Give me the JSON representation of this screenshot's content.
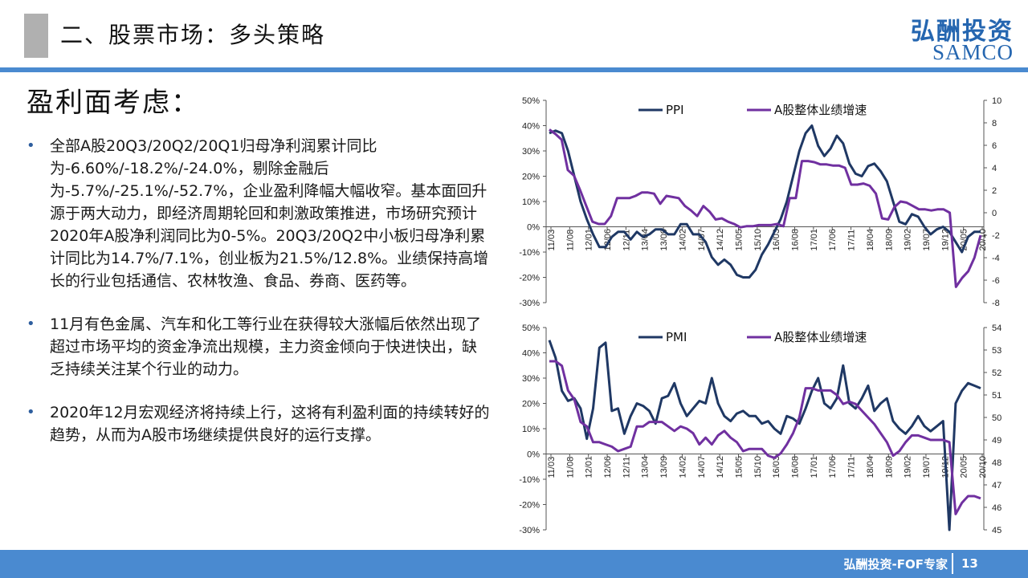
{
  "header": {
    "title": "二、股票市场：多头策略"
  },
  "brand": {
    "cn": "弘酬投资",
    "en": "SAMCO"
  },
  "section_title": "盈利面考虑：",
  "bullets": [
    "全部A股20Q3/20Q2/20Q1归母净利润累计同比为-6.60%/-18.2%/-24.0%，剔除金融后为-5.7%/-25.1%/-52.7%，企业盈利降幅大幅收窄。基本面回升源于两大动力，即经济周期轮回和刺激政策推进，市场研究预计2020年A股净利润同比为0-5%。20Q3/20Q2中小板归母净利累计同比为14.7%/7.1%，创业板为21.5%/12.8%。业绩保持高增长的行业包括通信、农林牧渔、食品、券商、医药等。",
    "11月有色金属、汽车和化工等行业在获得较大涨幅后依然出现了超过市场平均的资金净流出规模，主力资金倾向于快进快出，缺乏持续关注某个行业的动力。",
    "2020年12月宏观经济将持续上行，这将有利盈利面的持续转好的趋势，从而为A股市场继续提供良好的运行支撑。"
  ],
  "footer": {
    "text": "弘酬投资-FOF专家",
    "page": "13"
  },
  "colors": {
    "brand": "#2566b0",
    "bar": "#4a8ad0",
    "navy": "#1f3864",
    "purple": "#7030a0"
  },
  "chart_data": [
    {
      "type": "line",
      "x_ticks": [
        "11/03",
        "11/08",
        "12/01",
        "12/06",
        "12/11",
        "13/04",
        "13/09",
        "14/02",
        "14/07",
        "14/12",
        "15/05",
        "15/10",
        "16/03",
        "16/08",
        "17/01",
        "17/06",
        "17/11",
        "18/04",
        "18/09",
        "19/02",
        "19/07",
        "19/12",
        "20/05",
        "20/10"
      ],
      "left_axis": {
        "ticks": [
          "50%",
          "40%",
          "30%",
          "20%",
          "10%",
          "0%",
          "-10%",
          "-20%",
          "-30%"
        ],
        "ylim": [
          -30,
          50
        ]
      },
      "right_axis": {
        "ticks": [
          "10",
          "8",
          "6",
          "4",
          "2",
          "0",
          "-2",
          "-4",
          "-6",
          "-8"
        ],
        "ylim": [
          -8,
          10
        ]
      },
      "series": [
        {
          "name": "PPI",
          "axis": "left",
          "color": "#1f3864",
          "values": [
            37,
            38,
            37,
            30,
            20,
            10,
            3,
            -3,
            -8,
            -8,
            -4,
            -2,
            -2,
            -5,
            -2,
            -4,
            -3,
            -1,
            -1,
            -3,
            -3,
            1,
            1,
            -3,
            -3,
            -6,
            -12,
            -15,
            -13,
            -15,
            -19,
            -20,
            -20,
            -17,
            -11,
            -7,
            -2,
            3,
            10,
            20,
            30,
            37,
            40,
            32,
            28,
            31,
            36,
            33,
            25,
            21,
            20,
            24,
            25,
            22,
            18,
            10,
            2,
            1,
            5,
            4,
            0,
            -3,
            -1,
            0,
            -2,
            -6,
            -10,
            -4,
            -2,
            -2
          ]
        },
        {
          "name": "A股整体业绩增速",
          "axis": "right",
          "color": "#7030a0",
          "values": [
            7.4,
            7.0,
            6.5,
            3.8,
            3.3,
            2.0,
            0.6,
            -0.8,
            -1.0,
            -1.0,
            -0.3,
            1.3,
            1.3,
            1.3,
            1.5,
            1.8,
            1.8,
            1.7,
            0.8,
            1.5,
            1.4,
            1.3,
            0.6,
            0.2,
            -0.3,
            0.6,
            0.1,
            -0.6,
            -0.5,
            -0.8,
            -1.0,
            -1.3,
            -1.2,
            -1.2,
            -1.1,
            -1.1,
            -1.1,
            -1.0,
            -1.2,
            1.3,
            1.3,
            4.6,
            4.6,
            4.5,
            4.3,
            4.3,
            4.2,
            4.2,
            4.0,
            2.5,
            2.5,
            2.6,
            2.4,
            1.7,
            -0.5,
            -0.6,
            0.5,
            1.0,
            0.9,
            0.6,
            0.3,
            0.3,
            0.2,
            0.3,
            0.3,
            0.0,
            -6.6,
            -5.8,
            -5.2,
            -4.0,
            -2.0
          ]
        }
      ]
    },
    {
      "type": "line",
      "x_ticks": [
        "11/03",
        "11/08",
        "12/01",
        "12/06",
        "12/11",
        "13/04",
        "13/09",
        "14/02",
        "14/07",
        "14/12",
        "15/05",
        "15/10",
        "16/03",
        "16/08",
        "17/01",
        "17/06",
        "17/11",
        "18/04",
        "18/09",
        "19/02",
        "19/07",
        "19/12",
        "20/05",
        "20/10"
      ],
      "left_axis": {
        "ticks": [
          "50%",
          "40%",
          "30%",
          "20%",
          "10%",
          "0%",
          "-10%",
          "-20%",
          "-30%"
        ],
        "ylim": [
          -30,
          50
        ]
      },
      "right_axis": {
        "ticks": [
          "54",
          "53",
          "52",
          "51",
          "50",
          "49",
          "48",
          "47",
          "46",
          "45"
        ],
        "ylim": [
          45,
          54
        ]
      },
      "series": [
        {
          "name": "PMI",
          "axis": "left",
          "color": "#1f3864",
          "values": [
            45,
            38,
            25,
            21,
            22,
            18,
            6,
            18,
            42,
            44,
            17,
            18,
            8,
            15,
            20,
            19,
            17,
            12,
            22,
            23,
            28,
            20,
            15,
            18,
            21,
            20,
            30,
            20,
            15,
            13,
            16,
            17,
            15,
            15,
            12,
            13,
            10,
            8,
            15,
            14,
            12,
            18,
            25,
            30,
            20,
            18,
            22,
            35,
            20,
            18,
            22,
            27,
            17,
            20,
            22,
            13,
            10,
            8,
            11,
            15,
            11,
            9,
            11,
            13,
            -30,
            20,
            25,
            28,
            27,
            26
          ]
        },
        {
          "name": "A股整体业绩增速",
          "axis": "right",
          "color": "#7030a0",
          "values": [
            52.5,
            52.5,
            52.3,
            51.2,
            50.8,
            49.8,
            49.6,
            48.9,
            48.9,
            48.8,
            48.7,
            48.5,
            48.6,
            48.7,
            49.6,
            49.6,
            49.8,
            49.8,
            49.8,
            49.6,
            49.4,
            49.6,
            49.5,
            49.3,
            48.8,
            49.1,
            48.8,
            49.2,
            49.4,
            49.1,
            48.9,
            48.5,
            48.6,
            48.6,
            48.6,
            48.3,
            48.2,
            48.4,
            48.8,
            49.3,
            50.0,
            51.3,
            51.3,
            51.2,
            51.2,
            51.2,
            51.0,
            50.6,
            50.7,
            50.6,
            50.3,
            50.0,
            49.7,
            49.3,
            48.9,
            48.3,
            48.5,
            48.9,
            49.2,
            49.2,
            49.1,
            49.0,
            49.0,
            49.0,
            48.9,
            45.7,
            46.2,
            46.5,
            46.5,
            46.4
          ]
        }
      ]
    }
  ]
}
